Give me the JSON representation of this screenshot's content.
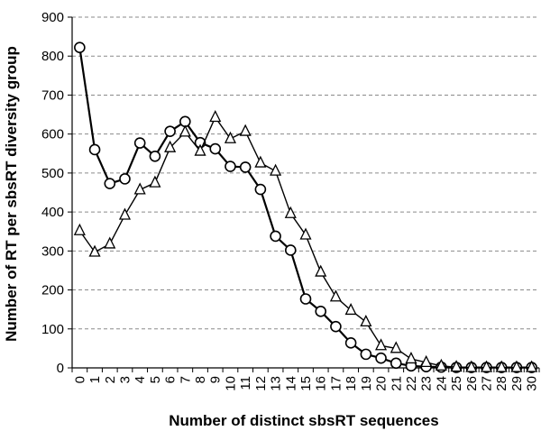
{
  "chart_data": {
    "type": "line",
    "xlabel": "Number of distinct sbsRT sequences",
    "ylabel": "Number  of RT per sbsRT diversity group",
    "ylim": [
      0,
      900
    ],
    "yticks": [
      0,
      100,
      200,
      300,
      400,
      500,
      600,
      700,
      800,
      900
    ],
    "x": [
      "0",
      "1",
      "2",
      "3",
      "4",
      "5",
      "6",
      "7",
      "8",
      "9",
      "10",
      "11",
      "12",
      "13",
      "14",
      "15",
      "16",
      "17",
      "18",
      "19",
      "20",
      "21",
      "22",
      "23",
      "24",
      "25",
      "26",
      "27",
      "28",
      "29",
      "30"
    ],
    "grid": "horizontal dashed",
    "series": [
      {
        "marker": "circle",
        "values": [
          822,
          560,
          473,
          485,
          577,
          543,
          607,
          632,
          578,
          562,
          517,
          515,
          458,
          338,
          302,
          177,
          145,
          106,
          64,
          35,
          25,
          12,
          5,
          3,
          2,
          1,
          1,
          1,
          1,
          1,
          1
        ]
      },
      {
        "marker": "triangle",
        "values": [
          352,
          297,
          318,
          392,
          457,
          475,
          565,
          605,
          556,
          643,
          588,
          607,
          526,
          505,
          396,
          341,
          246,
          182,
          148,
          118,
          57,
          50,
          23,
          14,
          5,
          2,
          1,
          1,
          1,
          1,
          1
        ]
      }
    ]
  }
}
